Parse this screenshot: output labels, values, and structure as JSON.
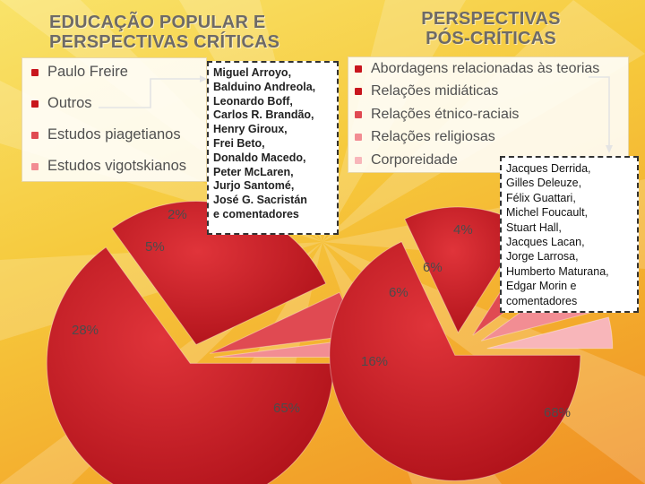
{
  "colors": {
    "slice_dark": "#c8161d",
    "slice_mid": "#e04a52",
    "slice_light": "#f28d93",
    "slice_pale": "#f8b6ba",
    "title": "#6e6a66"
  },
  "left_title": [
    "EDUCAÇÃO POPULAR E",
    "PERSPECTIVAS CRÍTICAS"
  ],
  "right_title": [
    "PERSPECTIVAS",
    "PÓS-CRÍTICAS"
  ],
  "left_names": [
    "Miguel Arroyo,",
    "Balduino Andreola,",
    "Leonardo  Boff,",
    "Carlos R. Brandão,",
    "Henry Giroux,",
    "Frei Beto,",
    "Donaldo Macedo,",
    "Peter McLaren,",
    "Jurjo Santomé,",
    "José G. Sacristán",
    "e comentadores"
  ],
  "right_names": [
    "Jacques Derrida,",
    "Gilles Deleuze,",
    "Félix Guattari,",
    "Michel  Foucault,",
    "Stuart Hall,",
    "Jacques Lacan,",
    "Jorge Larrosa,",
    "Humberto Maturana,",
    "Edgar Morin e",
    "comentadores"
  ],
  "chart_data": [
    {
      "type": "pie",
      "categories": [
        "Paulo Freire",
        "Outros",
        "Estudos piagetianos",
        "Estudos vigotskianos"
      ],
      "values": [
        65,
        28,
        5,
        2
      ],
      "labels": [
        "65%",
        "28%",
        "5%",
        "2%"
      ],
      "colors": [
        "#c8161d",
        "#c8161d",
        "#e04a52",
        "#f28d93"
      ]
    },
    {
      "type": "pie",
      "categories": [
        "Abordagens relacionadas às teorias",
        "Relações midiáticas",
        "Relações étnico-raciais",
        "Relações religiosas",
        "Corporeidade"
      ],
      "values": [
        68,
        16,
        6,
        6,
        4
      ],
      "labels": [
        "68%",
        "16%",
        "6%",
        "6%",
        "4%"
      ],
      "colors": [
        "#c8161d",
        "#c8161d",
        "#e04a52",
        "#f28d93",
        "#f8b6ba"
      ]
    }
  ]
}
